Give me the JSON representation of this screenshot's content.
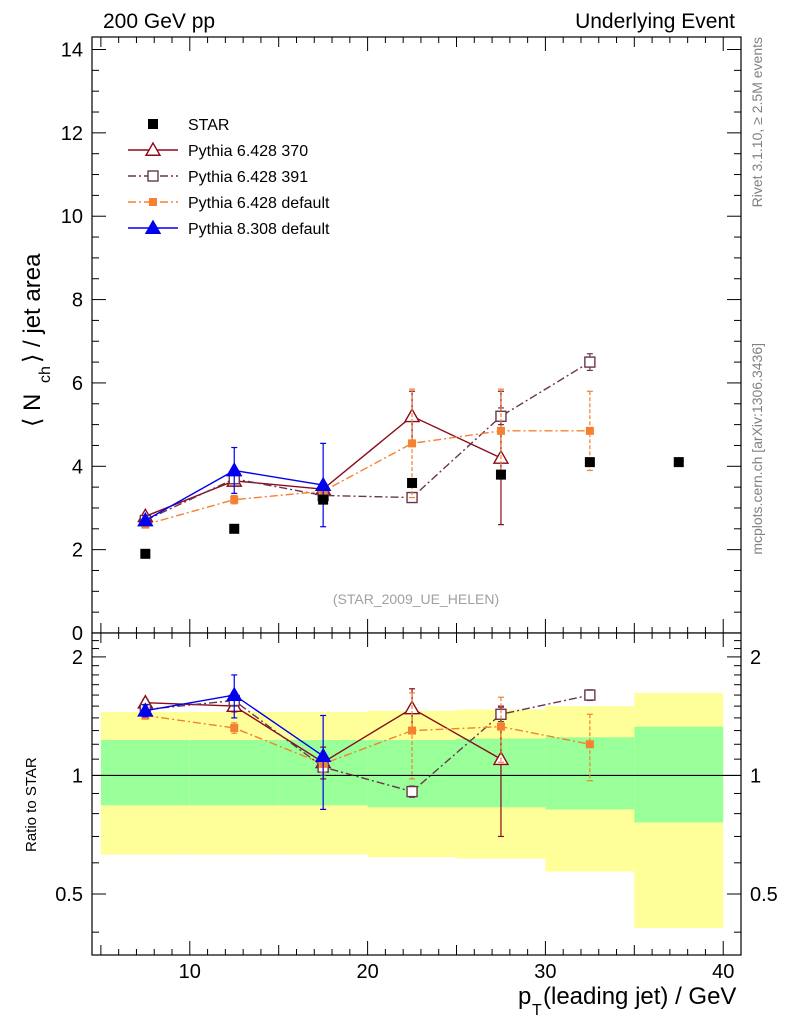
{
  "header": {
    "left_title": "200 GeV pp",
    "right_title": "Underlying Event",
    "watermark": "(STAR_2009_UE_HELEN)",
    "side_top": "Rivet 3.1.10, ≥ 2.5M events",
    "side_bottom": "mcplots.cern.ch [arXiv:1306.3436]"
  },
  "colors": {
    "star": "#000000",
    "py370": "#8b0a1a",
    "py391": "#6a3550",
    "pydef": "#f58030",
    "py8": "#0000ee",
    "band_inner": "#99ff99",
    "band_outer": "#ffff99"
  },
  "chart_data": [
    {
      "type": "scatter",
      "panel": "main",
      "ylabel": "⟨ N_ch ⟩ / jet area",
      "xlim": [
        4.5,
        41
      ],
      "ylim": [
        0,
        14.3
      ],
      "yticks": [
        0,
        2,
        4,
        6,
        8,
        10,
        12,
        14
      ],
      "legend_position": "top-left",
      "series": [
        {
          "name": "STAR",
          "x": [
            7.5,
            12.5,
            17.5,
            22.5,
            27.5,
            32.5,
            37.5
          ],
          "y": [
            1.9,
            2.5,
            3.2,
            3.6,
            3.8,
            4.1,
            4.1
          ]
        },
        {
          "name": "Pythia 6.428 370",
          "x": [
            7.5,
            12.5,
            17.5,
            22.5,
            27.5
          ],
          "y": [
            2.8,
            3.65,
            3.45,
            5.2,
            4.2
          ],
          "err": [
            0.05,
            0.1,
            0.15,
            0.6,
            1.6
          ]
        },
        {
          "name": "Pythia 6.428 391",
          "x": [
            7.5,
            12.5,
            17.5,
            22.5,
            27.5,
            32.5
          ],
          "y": [
            2.7,
            3.7,
            3.3,
            3.25,
            5.2,
            6.5
          ],
          "err": [
            0.05,
            0.1,
            0.1,
            0.1,
            0.2,
            0.2
          ]
        },
        {
          "name": "Pythia 6.428 default",
          "x": [
            7.5,
            12.5,
            17.5,
            22.5,
            27.5,
            32.5
          ],
          "y": [
            2.6,
            3.2,
            3.4,
            4.55,
            4.85,
            4.85
          ],
          "err": [
            0.05,
            0.1,
            0.15,
            1.3,
            1.0,
            0.95
          ]
        },
        {
          "name": "Pythia 8.308 default",
          "x": [
            7.5,
            12.5,
            17.5
          ],
          "y": [
            2.7,
            3.9,
            3.55
          ],
          "err": [
            0.08,
            0.55,
            1.0
          ]
        }
      ]
    },
    {
      "type": "scatter",
      "panel": "ratio",
      "ylabel": "Ratio to STAR",
      "xlabel": "p_T(leading jet) / GeV",
      "xlim": [
        4.5,
        41
      ],
      "ylim": [
        0.35,
        2.3
      ],
      "yscale": "log",
      "xticks": [
        10,
        20,
        30,
        40
      ],
      "yticks": [
        0.5,
        1,
        2
      ],
      "reference": 1,
      "bands": [
        {
          "x0": 5,
          "x1": 10,
          "inner": [
            0.84,
            1.23
          ],
          "outer": [
            0.63,
            1.45
          ]
        },
        {
          "x0": 10,
          "x1": 15,
          "inner": [
            0.84,
            1.23
          ],
          "outer": [
            0.63,
            1.45
          ]
        },
        {
          "x0": 15,
          "x1": 20,
          "inner": [
            0.84,
            1.23
          ],
          "outer": [
            0.63,
            1.45
          ]
        },
        {
          "x0": 20,
          "x1": 25,
          "inner": [
            0.83,
            1.23
          ],
          "outer": [
            0.62,
            1.46
          ]
        },
        {
          "x0": 25,
          "x1": 30,
          "inner": [
            0.83,
            1.24
          ],
          "outer": [
            0.615,
            1.47
          ]
        },
        {
          "x0": 30,
          "x1": 35,
          "inner": [
            0.82,
            1.25
          ],
          "outer": [
            0.57,
            1.5
          ]
        },
        {
          "x0": 35,
          "x1": 40,
          "inner": [
            0.76,
            1.33
          ],
          "outer": [
            0.41,
            1.62
          ]
        }
      ],
      "series": [
        {
          "name": "Pythia 6.428 370",
          "x": [
            7.5,
            12.5,
            17.5,
            22.5,
            27.5
          ],
          "y": [
            1.53,
            1.5,
            1.08,
            1.48,
            1.1
          ],
          "err": [
            0.03,
            0.05,
            0.1,
            0.18,
            0.4
          ]
        },
        {
          "name": "Pythia 6.428 391",
          "x": [
            7.5,
            12.5,
            17.5,
            22.5,
            27.5,
            32.5
          ],
          "y": [
            1.47,
            1.55,
            1.05,
            0.91,
            1.43,
            1.6
          ],
          "err": [
            0.03,
            0.05,
            0.05,
            0.03,
            0.06,
            0.05
          ]
        },
        {
          "name": "Pythia 6.428 default",
          "x": [
            7.5,
            12.5,
            17.5,
            22.5,
            27.5,
            32.5
          ],
          "y": [
            1.42,
            1.32,
            1.07,
            1.3,
            1.33,
            1.2
          ],
          "err": [
            0.03,
            0.04,
            0.05,
            0.32,
            0.25,
            0.23
          ]
        },
        {
          "name": "Pythia 8.308 default",
          "x": [
            7.5,
            12.5,
            17.5
          ],
          "y": [
            1.46,
            1.6,
            1.12
          ],
          "err": [
            0.05,
            0.2,
            0.3
          ]
        }
      ]
    }
  ]
}
